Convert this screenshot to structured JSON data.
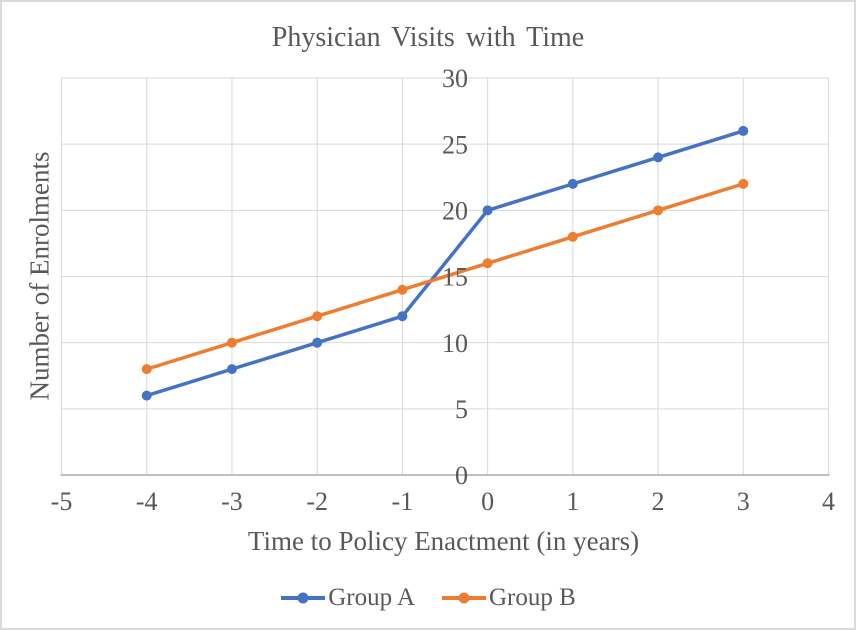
{
  "chart_data": {
    "type": "line",
    "title": "Physician Visits with Time",
    "xlabel": "Time to Policy Enactment (in years)",
    "ylabel": "Number of Enrolments",
    "x": [
      -4,
      -3,
      -2,
      -1,
      0,
      1,
      2,
      3
    ],
    "series": [
      {
        "name": "Group A",
        "color": "#4472C4",
        "values": [
          6,
          8,
          10,
          12,
          20,
          22,
          24,
          26
        ]
      },
      {
        "name": "Group B",
        "color": "#ED7D31",
        "values": [
          8,
          10,
          12,
          14,
          16,
          18,
          20,
          22
        ]
      }
    ],
    "xlim": [
      -5,
      4
    ],
    "ylim": [
      0,
      30
    ],
    "x_ticks": [
      -5,
      -4,
      -3,
      -2,
      -1,
      0,
      1,
      2,
      3,
      4
    ],
    "y_ticks": [
      0,
      5,
      10,
      15,
      20,
      25,
      30
    ],
    "grid": true,
    "legend_position": "bottom",
    "marker": "circle",
    "colors": {
      "gridline": "#D9D9D9",
      "axis_line": "#BFBFBF",
      "text": "#595959",
      "frame_border": "#D9D9D9"
    }
  }
}
